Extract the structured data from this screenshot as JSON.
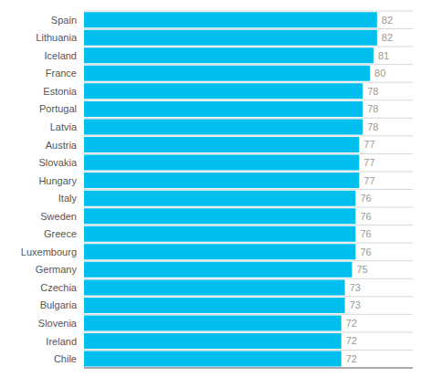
{
  "chart_data": {
    "type": "bar",
    "orientation": "horizontal",
    "categories": [
      "Spain",
      "Lithuania",
      "Iceland",
      "France",
      "Estonia",
      "Portugal",
      "Latvia",
      "Austria",
      "Slovakia",
      "Hungary",
      "Italy",
      "Sweden",
      "Greece",
      "Luxembourg",
      "Germany",
      "Czechia",
      "Bulgaria",
      "Slovenia",
      "Ireland",
      "Chile"
    ],
    "values": [
      82,
      82,
      81,
      80,
      78,
      78,
      78,
      77,
      77,
      77,
      76,
      76,
      76,
      76,
      75,
      73,
      73,
      72,
      72,
      72
    ],
    "color": "#00BFEF",
    "xlim": [
      0,
      92
    ],
    "grid": true,
    "data_labels": true,
    "tick_labels": "y"
  }
}
